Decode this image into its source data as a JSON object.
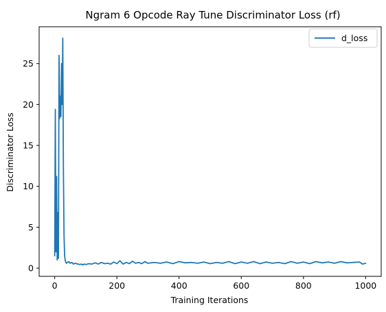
{
  "chart_data": {
    "type": "line",
    "title": "Ngram 6 Opcode Ray Tune Discriminator Loss (rf)",
    "xlabel": "Training Iterations",
    "ylabel": "Discriminator Loss",
    "xlim": [
      -50,
      1050
    ],
    "ylim": [
      -1.0,
      29.5
    ],
    "xticks": [
      0,
      200,
      400,
      600,
      800,
      1000
    ],
    "yticks": [
      0,
      5,
      10,
      15,
      20,
      25
    ],
    "grid": false,
    "legend_position": "upper right",
    "series": [
      {
        "name": "d_loss",
        "color": "#1f77b4",
        "x": [
          0,
          2,
          4,
          6,
          8,
          10,
          12,
          14,
          16,
          18,
          20,
          22,
          24,
          26,
          28,
          30,
          32,
          34,
          36,
          38,
          40,
          45,
          50,
          55,
          60,
          65,
          70,
          75,
          80,
          85,
          90,
          95,
          100,
          110,
          120,
          130,
          140,
          150,
          160,
          170,
          180,
          190,
          200,
          210,
          220,
          230,
          240,
          250,
          260,
          270,
          280,
          290,
          300,
          320,
          340,
          360,
          380,
          400,
          420,
          440,
          460,
          480,
          500,
          520,
          540,
          560,
          580,
          600,
          620,
          640,
          660,
          680,
          700,
          720,
          740,
          760,
          780,
          800,
          820,
          840,
          860,
          880,
          900,
          920,
          940,
          960,
          980,
          990,
          1000
        ],
        "y": [
          1.5,
          19.4,
          2.0,
          11.2,
          1.0,
          6.8,
          1.2,
          26.0,
          18.3,
          21.0,
          18.5,
          25.0,
          20.0,
          28.1,
          12.0,
          4.0,
          1.5,
          0.9,
          0.7,
          0.6,
          0.7,
          0.8,
          0.6,
          0.7,
          0.5,
          0.6,
          0.55,
          0.5,
          0.45,
          0.5,
          0.4,
          0.5,
          0.45,
          0.55,
          0.5,
          0.65,
          0.5,
          0.7,
          0.55,
          0.6,
          0.5,
          0.75,
          0.55,
          0.9,
          0.5,
          0.7,
          0.55,
          0.85,
          0.6,
          0.7,
          0.55,
          0.8,
          0.6,
          0.7,
          0.6,
          0.75,
          0.55,
          0.8,
          0.65,
          0.7,
          0.6,
          0.75,
          0.55,
          0.7,
          0.6,
          0.8,
          0.55,
          0.75,
          0.6,
          0.8,
          0.55,
          0.75,
          0.6,
          0.7,
          0.55,
          0.8,
          0.6,
          0.75,
          0.55,
          0.8,
          0.65,
          0.75,
          0.6,
          0.8,
          0.65,
          0.7,
          0.75,
          0.5,
          0.6
        ]
      }
    ]
  }
}
